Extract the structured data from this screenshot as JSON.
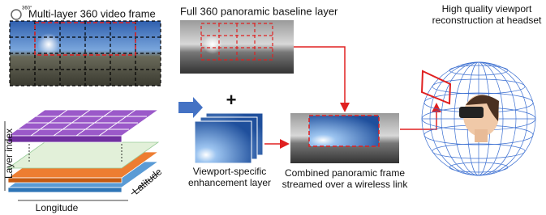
{
  "icon_label": "360°",
  "frame_title": "Multi-layer 360 video frame",
  "baseline_title": "Full 360 panoramic baseline layer",
  "headset_title": [
    "High quality viewport",
    "reconstruction at headset"
  ],
  "axes": {
    "layer": "Layer index",
    "latitude": "Latitude",
    "longitude": "Longitude"
  },
  "enhancement_caption": [
    "Viewport-specific",
    "enhancement layer"
  ],
  "combined_caption": [
    "Combined panoramic frame",
    "streamed over a wireless link"
  ]
}
